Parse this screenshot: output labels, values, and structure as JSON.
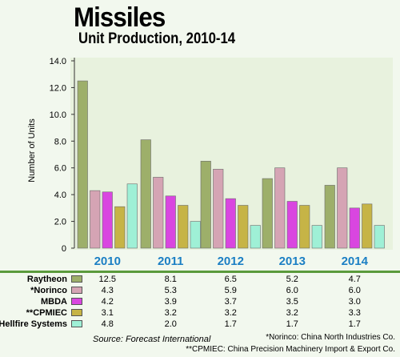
{
  "title": "Missiles",
  "subtitle": "Unit Production, 2010-14",
  "ylabel": "Number of Units",
  "source": "Source:  Forecast International",
  "footnotes": [
    "*Norinco: China North Industries Co.",
    "**CPMIEC: China Precision Machinery Import & Export Co."
  ],
  "colors": {
    "background": "#f2f8ee",
    "plot_background": "#e8f2de",
    "year_labels": "#1b7fc4",
    "separator": "#5a9a3c"
  },
  "chart_data": {
    "type": "bar",
    "categories": [
      "2010",
      "2011",
      "2012",
      "2013",
      "2014"
    ],
    "ylabel": "Number of Units",
    "ylim": [
      0,
      14
    ],
    "yticks": [
      "0",
      "2.0",
      "4.0",
      "6.0",
      "8.0",
      "10.0",
      "12.0",
      "14.0"
    ],
    "grid": false,
    "legend_placement": "table-below",
    "series": [
      {
        "name": "Raytheon",
        "color": "#9daf6a",
        "values": [
          12.5,
          8.1,
          6.5,
          5.2,
          4.7
        ],
        "labels": [
          "12.5",
          "8.1",
          "6.5",
          "5.2",
          "4.7"
        ]
      },
      {
        "name": "*Norinco",
        "color": "#d5a4b4",
        "values": [
          4.3,
          5.3,
          5.9,
          6.0,
          6.0
        ],
        "labels": [
          "4.3",
          "5.3",
          "5.9",
          "6.0",
          "6.0"
        ]
      },
      {
        "name": "MBDA",
        "color": "#d946e0",
        "values": [
          4.2,
          3.9,
          3.7,
          3.5,
          3.0
        ],
        "labels": [
          "4.2",
          "3.9",
          "3.7",
          "3.5",
          "3.0"
        ]
      },
      {
        "name": "**CPMIEC",
        "color": "#c6b446",
        "values": [
          3.1,
          3.2,
          3.2,
          3.2,
          3.3
        ],
        "labels": [
          "3.1",
          "3.2",
          "3.2",
          "3.2",
          "3.3"
        ]
      },
      {
        "name": "Hellfire Systems",
        "color": "#9ff0d6",
        "values": [
          4.8,
          2.0,
          1.7,
          1.7,
          1.7
        ],
        "labels": [
          "4.8",
          "2.0",
          "1.7",
          "1.7",
          "1.7"
        ]
      }
    ]
  }
}
